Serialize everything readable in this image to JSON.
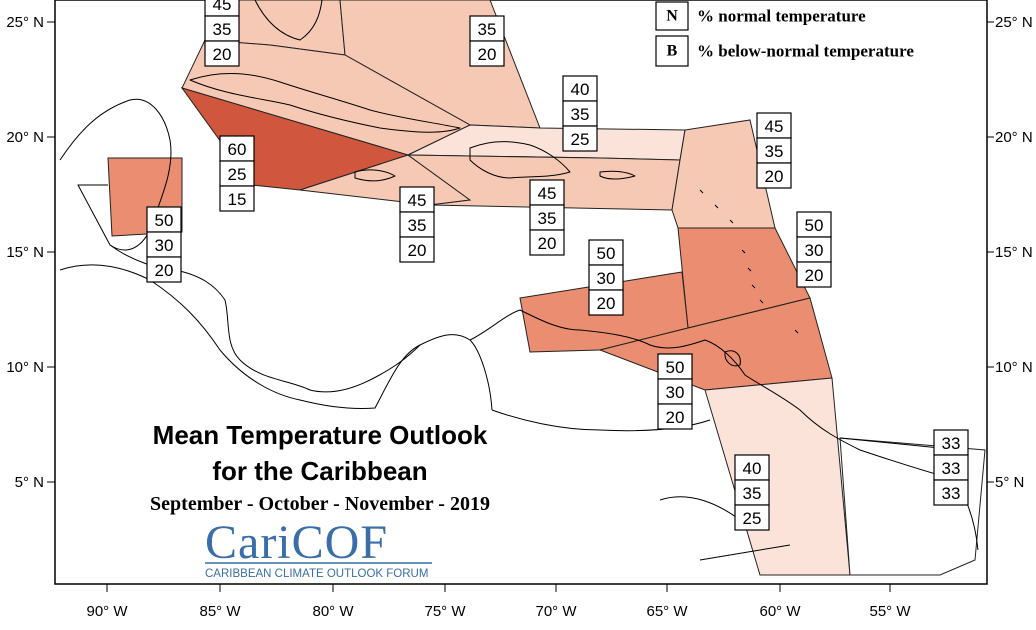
{
  "title": {
    "line1": "Mean Temperature Outlook",
    "line2": "for the Caribbean",
    "season": "September - October - November - 2019"
  },
  "logo": {
    "name": "CariCOF",
    "caption": "CARIBBEAN CLIMATE OUTLOOK FORUM"
  },
  "legend": {
    "items": [
      {
        "letter": "N",
        "text": "% normal temperature"
      },
      {
        "letter": "B",
        "text": "% below-normal temperature"
      }
    ]
  },
  "axes": {
    "x_ticks": [
      "90° W",
      "85° W",
      "80° W",
      "75° W",
      "70° W",
      "65° W",
      "60° W",
      "55° W"
    ],
    "y_ticks": [
      "25° N",
      "20° N",
      "15° N",
      "10° N",
      "5° N"
    ]
  },
  "colors": {
    "prob_60": "#d0573e",
    "prob_50": "#ea8d70",
    "prob_45": "#f6c9b5",
    "prob_40": "#fbe3d9",
    "prob_33": "#ffffff",
    "logo": "#3a6ea8"
  },
  "regions": [
    {
      "id": "bahamas-north",
      "probs": [
        "45",
        "35",
        "20"
      ],
      "fill": "#f6c9b5"
    },
    {
      "id": "bahamas",
      "probs": [
        "",
        "35",
        "20"
      ],
      "fill": "#f6c9b5"
    },
    {
      "id": "cuba-east",
      "probs": [
        "60",
        "25",
        "15"
      ],
      "fill": "#d0573e"
    },
    {
      "id": "jamaica",
      "probs": [
        "45",
        "35",
        "20"
      ],
      "fill": "#f6c9b5"
    },
    {
      "id": "hispaniola",
      "probs": [
        "45",
        "35",
        "20"
      ],
      "fill": "#f6c9b5"
    },
    {
      "id": "turks-caicos",
      "probs": [
        "40",
        "35",
        "25"
      ],
      "fill": "#fbe3d9"
    },
    {
      "id": "northern-leewards",
      "probs": [
        "45",
        "35",
        "20"
      ],
      "fill": "#f6c9b5"
    },
    {
      "id": "windwards",
      "probs": [
        "50",
        "30",
        "20"
      ],
      "fill": "#ea8d70"
    },
    {
      "id": "belize",
      "probs": [
        "50",
        "30",
        "20"
      ],
      "fill": "#ea8d70"
    },
    {
      "id": "abc-islands",
      "probs": [
        "50",
        "30",
        "20"
      ],
      "fill": "#ea8d70"
    },
    {
      "id": "trinidad",
      "probs": [
        "50",
        "30",
        "20"
      ],
      "fill": "#ea8d70"
    },
    {
      "id": "guyana",
      "probs": [
        "40",
        "35",
        "25"
      ],
      "fill": "#fbe3d9"
    },
    {
      "id": "suriname",
      "probs": [
        "33",
        "33",
        "33"
      ],
      "fill": "#ffffff"
    }
  ]
}
